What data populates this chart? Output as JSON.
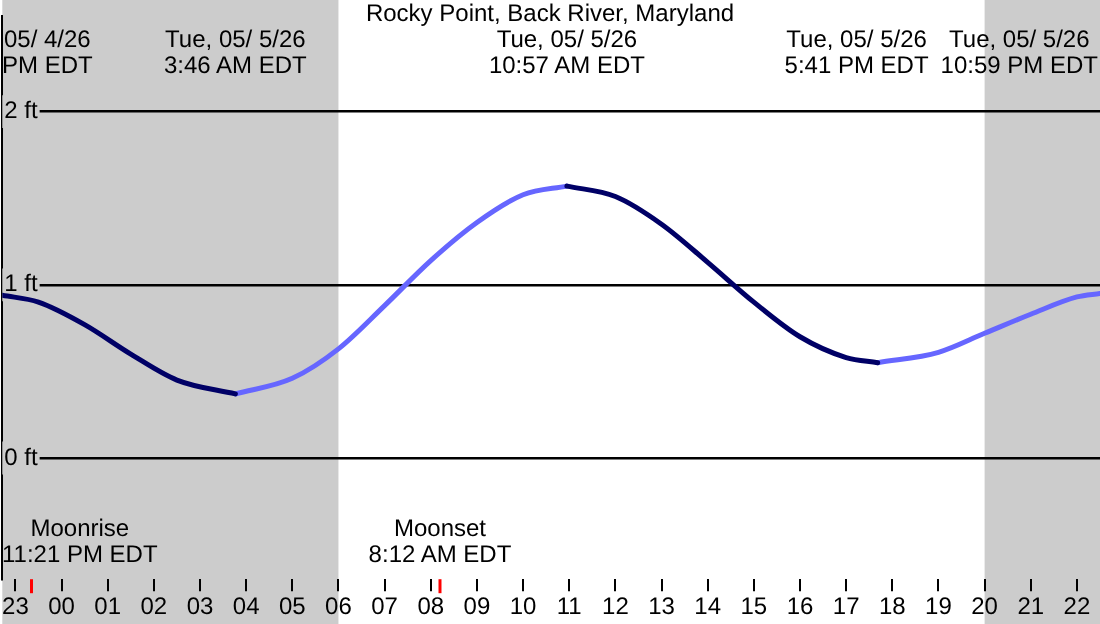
{
  "chart_data": {
    "type": "line",
    "title": "Rocky Point, Back River, Maryland",
    "xlim": [
      "--05-04T22:43",
      "--05-05T22:30"
    ],
    "ylim": [
      -0.7,
      2.55
    ],
    "xticks": [
      {
        "value": "--05-04T23:00",
        "label": "23"
      },
      {
        "value": "--05-05T00:00",
        "label": "00"
      },
      {
        "value": "--05-05T01:00",
        "label": "01"
      },
      {
        "value": "--05-05T02:00",
        "label": "02"
      },
      {
        "value": "--05-05T03:00",
        "label": "03"
      },
      {
        "value": "--05-05T04:00",
        "label": "04"
      },
      {
        "value": "--05-05T05:00",
        "label": "05"
      },
      {
        "value": "--05-05T06:00",
        "label": "06"
      },
      {
        "value": "--05-05T07:00",
        "label": "07"
      },
      {
        "value": "--05-05T08:00",
        "label": "08"
      },
      {
        "value": "--05-05T09:00",
        "label": "09"
      },
      {
        "value": "--05-05T10:00",
        "label": "10"
      },
      {
        "value": "--05-05T11:00",
        "label": "11"
      },
      {
        "value": "--05-05T12:00",
        "label": "12"
      },
      {
        "value": "--05-05T13:00",
        "label": "13"
      },
      {
        "value": "--05-05T14:00",
        "label": "14"
      },
      {
        "value": "--05-05T15:00",
        "label": "15"
      },
      {
        "value": "--05-05T16:00",
        "label": "16"
      },
      {
        "value": "--05-05T17:00",
        "label": "17"
      },
      {
        "value": "--05-05T18:00",
        "label": "18"
      },
      {
        "value": "--05-05T19:00",
        "label": "19"
      },
      {
        "value": "--05-05T20:00",
        "label": "20"
      },
      {
        "value": "--05-05T21:00",
        "label": "21"
      },
      {
        "value": "--05-05T22:00",
        "label": "22"
      }
    ],
    "yticks": [
      {
        "value": 0,
        "label": "0 ft"
      },
      {
        "value": 1,
        "label": "1 ft"
      },
      {
        "value": 2,
        "label": "2 ft"
      }
    ],
    "grid": "y",
    "legend": false,
    "marker": "none",
    "series": [
      {
        "color": "#000066",
        "x": [
          "--05-04T22:43",
          "--05-04T23:30",
          "--05-05T00:30",
          "--05-05T01:30",
          "--05-05T02:30",
          "--05-05T03:46",
          null,
          "--05-05T10:57",
          "--05-05T12:00",
          "--05-05T13:00",
          "--05-05T14:00",
          "--05-05T15:00",
          "--05-05T16:00",
          "--05-05T17:00",
          "--05-05T17:41"
        ],
        "values": [
          0.94,
          0.9,
          0.77,
          0.6,
          0.45,
          0.37,
          null,
          1.57,
          1.51,
          1.35,
          1.13,
          0.9,
          0.7,
          0.58,
          0.55
        ]
      },
      {
        "color": "#6666ff",
        "x": [
          "--05-05T03:46",
          "--05-05T05:00",
          "--05-05T06:00",
          "--05-05T07:00",
          "--05-05T08:00",
          "--05-05T09:00",
          "--05-05T10:00",
          "--05-05T10:57",
          null,
          "--05-05T17:41",
          "--05-05T19:00",
          "--05-05T20:00",
          "--05-05T21:00",
          "--05-05T22:00",
          "--05-05T22:30"
        ],
        "values": [
          0.37,
          0.46,
          0.63,
          0.88,
          1.14,
          1.36,
          1.52,
          1.57,
          null,
          0.55,
          0.61,
          0.72,
          0.83,
          0.93,
          0.95
        ]
      }
    ],
    "bands": [
      {
        "axis": "x",
        "from": "--05-04T22:43",
        "to": "--05-05T06:00",
        "color": "#cccccc"
      },
      {
        "axis": "x",
        "from": "--05-05T20:00",
        "to": "--05-05T22:30",
        "color": "#cccccc"
      }
    ],
    "ref_lines": [
      {
        "axis": "x",
        "value": "--05-04T23:21",
        "label": "Moonrise\n11:21 PM EDT",
        "color": "#ff0000"
      },
      {
        "axis": "x",
        "value": "--05-05T08:12",
        "label": "Moonset\n8:12 AM EDT",
        "color": "#ff0000"
      }
    ],
    "annotations": [
      "05/ 4/26\nPM EDT",
      "Tue, 05/ 5/26\n3:46 AM EDT",
      "Tue, 05/ 5/26\n10:57 AM EDT",
      "Tue, 05/ 5/26\n5:41 PM EDT",
      "Tue, 05/ 5/26\n10:59 PM EDT"
    ]
  }
}
